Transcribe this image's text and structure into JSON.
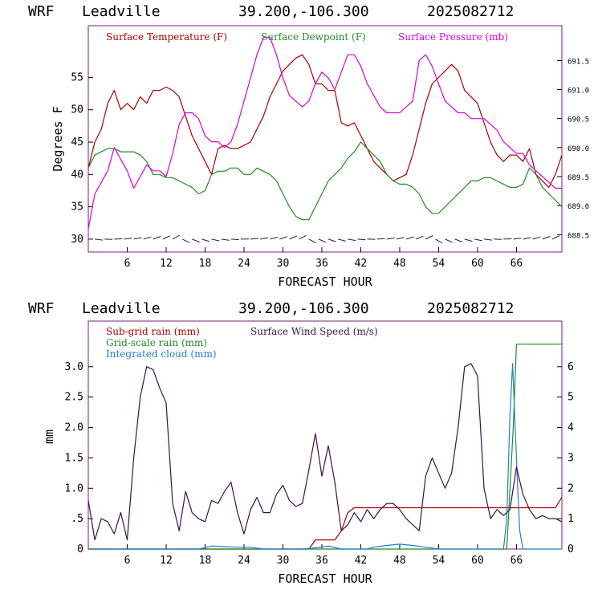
{
  "chart_data": [
    {
      "type": "line",
      "header": {
        "model": "WRF",
        "site": "Leadville",
        "coords": "39.200,-106.300",
        "run": "2025082712"
      },
      "xlabel": "FORECAST HOUR",
      "ylabel": "Degrees F",
      "xlim": [
        0,
        73
      ],
      "ylim": [
        28,
        63
      ],
      "y2lim": [
        688.2,
        692.1
      ],
      "x_ticks": [
        6,
        12,
        18,
        24,
        30,
        36,
        42,
        48,
        54,
        60,
        66
      ],
      "y_ticks": [
        30,
        35,
        40,
        45,
        50,
        55
      ],
      "y2_ticks": [
        "688.5",
        "689.0",
        "689.5",
        "690.0",
        "690.5",
        "691.0",
        "691.5"
      ],
      "legend": [
        "Surface Temperature (F)",
        "Surface Dewpoint (F)",
        "Surface Pressure (mb)"
      ],
      "colors": {
        "temperature": "#b00000",
        "dewpoint": "#228b22",
        "pressure": "#e000e0",
        "wind_barbs": "#3a1050"
      },
      "series": [
        {
          "name": "Surface Temperature (F)",
          "axis": "left",
          "color": "#b00000",
          "x": [
            0,
            1,
            2,
            3,
            4,
            5,
            6,
            7,
            8,
            9,
            10,
            11,
            12,
            13,
            14,
            15,
            16,
            17,
            18,
            19,
            20,
            21,
            22,
            23,
            24,
            25,
            26,
            27,
            28,
            29,
            30,
            31,
            32,
            33,
            34,
            35,
            36,
            37,
            38,
            39,
            40,
            41,
            42,
            43,
            44,
            45,
            46,
            47,
            48,
            49,
            50,
            51,
            52,
            53,
            54,
            55,
            56,
            57,
            58,
            59,
            60,
            61,
            62,
            63,
            64,
            65,
            66,
            67,
            68,
            69,
            70,
            71,
            72,
            73
          ],
          "y": [
            41,
            45,
            47,
            51,
            53,
            50,
            51,
            50,
            52,
            51,
            53,
            53,
            53.5,
            53,
            52,
            49,
            46,
            44,
            42,
            40,
            44,
            44.5,
            44,
            44,
            44.5,
            45,
            47,
            49,
            52,
            54,
            56,
            57,
            58,
            58.5,
            57,
            54,
            54,
            53,
            53,
            48,
            47.5,
            48,
            46,
            44,
            42,
            41,
            40,
            39,
            39.5,
            40,
            43,
            47,
            51,
            54,
            55,
            56,
            57,
            56,
            53,
            52,
            51,
            48,
            45,
            43,
            42,
            43,
            43,
            42,
            44,
            40,
            39,
            38,
            40,
            43
          ]
        },
        {
          "name": "Surface Dewpoint (F)",
          "axis": "left",
          "color": "#228b22",
          "x": [
            0,
            1,
            2,
            3,
            4,
            5,
            6,
            7,
            8,
            9,
            10,
            11,
            12,
            13,
            14,
            15,
            16,
            17,
            18,
            19,
            20,
            21,
            22,
            23,
            24,
            25,
            26,
            27,
            28,
            29,
            30,
            31,
            32,
            33,
            34,
            35,
            36,
            37,
            38,
            39,
            40,
            41,
            42,
            43,
            44,
            45,
            46,
            47,
            48,
            49,
            50,
            51,
            52,
            53,
            54,
            55,
            56,
            57,
            58,
            59,
            60,
            61,
            62,
            63,
            64,
            65,
            66,
            67,
            68,
            69,
            70,
            71,
            72,
            73
          ],
          "y": [
            41,
            43,
            43.5,
            44,
            44,
            43.5,
            43.5,
            43.5,
            43,
            42,
            40,
            40,
            39.5,
            39.5,
            39,
            38.5,
            38,
            37,
            37.5,
            40,
            40.5,
            40.5,
            41,
            41,
            40,
            40,
            41,
            40.5,
            40,
            39,
            37,
            35,
            33.5,
            33,
            33,
            35,
            37,
            39,
            40,
            41,
            42.5,
            43.5,
            45,
            44,
            43,
            42,
            40,
            39,
            38.5,
            38.5,
            38,
            37,
            35,
            34,
            34,
            35,
            36,
            37,
            38,
            39,
            39,
            39.5,
            39.5,
            39,
            38.5,
            38,
            38,
            38.5,
            41,
            40,
            38,
            37,
            36,
            35
          ]
        },
        {
          "name": "Surface Pressure (mb)",
          "axis": "right",
          "color": "#e000e0",
          "x": [
            0,
            1,
            2,
            3,
            4,
            5,
            6,
            7,
            8,
            9,
            10,
            11,
            12,
            13,
            14,
            15,
            16,
            17,
            18,
            19,
            20,
            21,
            22,
            23,
            24,
            25,
            26,
            27,
            28,
            29,
            30,
            31,
            32,
            33,
            34,
            35,
            36,
            37,
            38,
            39,
            40,
            41,
            42,
            43,
            44,
            45,
            46,
            47,
            48,
            49,
            50,
            51,
            52,
            53,
            54,
            55,
            56,
            57,
            58,
            59,
            60,
            61,
            62,
            63,
            64,
            65,
            66,
            67,
            68,
            69,
            70,
            71,
            72,
            73
          ],
          "y": [
            688.6,
            689.2,
            689.4,
            689.6,
            690.0,
            689.8,
            689.6,
            689.3,
            689.5,
            689.7,
            689.6,
            689.6,
            689.5,
            689.9,
            690.4,
            690.6,
            690.6,
            690.5,
            690.2,
            690.1,
            690.1,
            690.0,
            690.1,
            690.4,
            690.8,
            691.2,
            691.6,
            691.9,
            691.9,
            691.6,
            691.2,
            690.9,
            690.8,
            690.7,
            690.8,
            691.1,
            691.3,
            691.2,
            691.0,
            691.3,
            691.6,
            691.6,
            691.4,
            691.1,
            690.9,
            690.7,
            690.6,
            690.6,
            690.6,
            690.7,
            690.8,
            691.5,
            691.6,
            691.4,
            691.1,
            690.8,
            690.7,
            690.6,
            690.6,
            690.5,
            690.5,
            690.5,
            690.4,
            690.3,
            690.1,
            690.0,
            689.9,
            689.9,
            689.7,
            689.6,
            689.5,
            689.4,
            689.3,
            689.3
          ]
        }
      ]
    },
    {
      "type": "line",
      "header": {
        "model": "WRF",
        "site": "Leadville",
        "coords": "39.200,-106.300",
        "run": "2025082712"
      },
      "xlabel": "FORECAST HOUR",
      "ylabel": "mm",
      "xlim": [
        0,
        73
      ],
      "ylim": [
        0,
        3.75
      ],
      "y2lim": [
        0,
        7.5
      ],
      "x_ticks": [
        6,
        12,
        18,
        24,
        30,
        36,
        42,
        48,
        54,
        60,
        66
      ],
      "y_ticks": [
        "0",
        ".5",
        "1.0",
        "1.5",
        "2.0",
        "2.5",
        "3.0"
      ],
      "y2_ticks": [
        "0",
        "1",
        "2",
        "3",
        "4",
        "5",
        "6"
      ],
      "legend": [
        "Sub-grid rain (mm)",
        "Grid-scale rain (mm)",
        "Integrated cloud (mm)",
        "Surface Wind Speed (m/s)"
      ],
      "colors": {
        "subgrid": "#b00000",
        "gridscale": "#228b22",
        "cloud": "#1e7fd0",
        "wind": "#3a1050"
      },
      "series": [
        {
          "name": "Sub-grid rain (mm)",
          "axis": "left",
          "color": "#b00000",
          "x": [
            0,
            34,
            35,
            38,
            39,
            40,
            41,
            42,
            72,
            73
          ],
          "y": [
            0,
            0,
            0.15,
            0.15,
            0.3,
            0.6,
            0.68,
            0.68,
            0.68,
            0.85
          ]
        },
        {
          "name": "Grid-scale rain (mm)",
          "axis": "left",
          "color": "#228b22",
          "x": [
            0,
            64.5,
            65.5,
            66,
            73
          ],
          "y": [
            0,
            0,
            2.0,
            3.37,
            3.37
          ]
        },
        {
          "name": "Integrated cloud (mm)",
          "axis": "left",
          "color": "#1e7fd0",
          "x": [
            0,
            17,
            19,
            21,
            23,
            25,
            27,
            33,
            35,
            37,
            39,
            43,
            44,
            46,
            48,
            50,
            52,
            54,
            56,
            58,
            60,
            62,
            64,
            64.5,
            65,
            65.4,
            65.8,
            66.2,
            66.5,
            67,
            73
          ],
          "y": [
            0,
            0,
            0.05,
            0.04,
            0.03,
            0.03,
            0,
            0,
            0.02,
            0.05,
            0,
            0,
            0.03,
            0.06,
            0.08,
            0.06,
            0.03,
            0,
            0,
            0,
            0,
            0,
            0,
            0.5,
            2.2,
            3.05,
            2.0,
            1.0,
            0.3,
            0,
            0
          ]
        },
        {
          "name": "Surface Wind Speed (m/s)",
          "axis": "right",
          "color": "#3a1050",
          "x": [
            0,
            1,
            2,
            3,
            4,
            5,
            6,
            7,
            8,
            9,
            10,
            11,
            12,
            13,
            14,
            15,
            16,
            17,
            18,
            19,
            20,
            21,
            22,
            23,
            24,
            25,
            26,
            27,
            28,
            29,
            30,
            31,
            32,
            33,
            34,
            35,
            36,
            37,
            38,
            39,
            40,
            41,
            42,
            43,
            44,
            45,
            46,
            47,
            48,
            49,
            50,
            51,
            52,
            53,
            54,
            55,
            56,
            57,
            58,
            59,
            60,
            61,
            62,
            63,
            64,
            65,
            66,
            67,
            68,
            69,
            70,
            71,
            72,
            73
          ],
          "y": [
            1.6,
            0.3,
            1.0,
            0.9,
            0.5,
            1.2,
            0.3,
            3.0,
            5.0,
            6.0,
            5.9,
            5.3,
            4.8,
            1.5,
            0.6,
            1.9,
            1.2,
            1.0,
            0.9,
            1.6,
            1.5,
            1.9,
            2.2,
            1.2,
            0.5,
            1.3,
            1.7,
            1.2,
            1.2,
            1.8,
            2.1,
            1.6,
            1.4,
            1.5,
            2.6,
            3.8,
            2.4,
            3.4,
            2.2,
            0.6,
            0.8,
            1.2,
            0.9,
            1.3,
            1.0,
            1.3,
            1.5,
            1.5,
            1.3,
            1.0,
            0.8,
            0.6,
            2.4,
            3.0,
            2.5,
            2.0,
            2.5,
            4.0,
            6.0,
            6.1,
            5.7,
            2.0,
            1.0,
            1.3,
            1.1,
            1.3,
            2.7,
            1.8,
            1.3,
            1.0,
            1.1,
            1.0,
            1.0,
            0.9
          ]
        }
      ]
    }
  ]
}
